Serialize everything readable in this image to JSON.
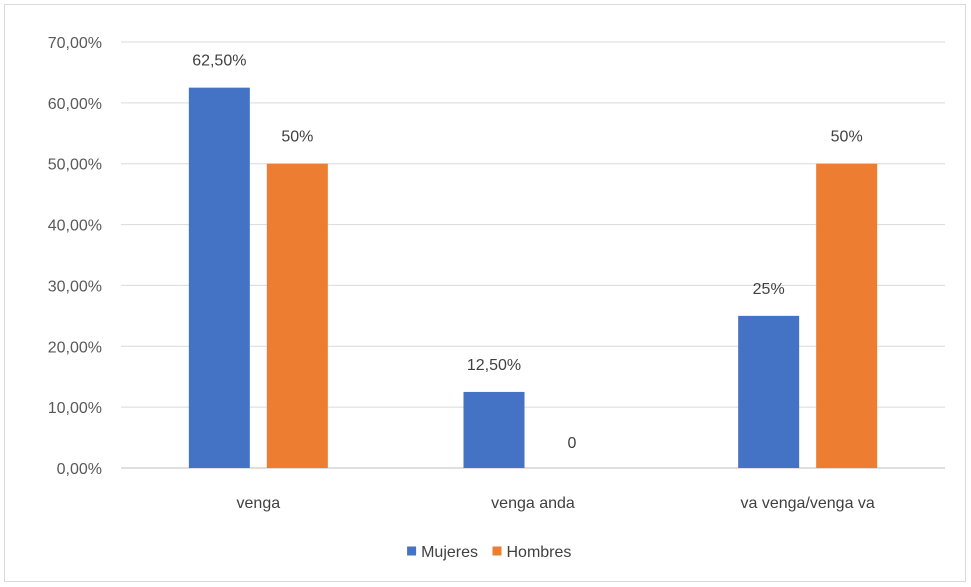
{
  "chart_data": {
    "type": "bar",
    "title": "",
    "xlabel": "",
    "ylabel": "",
    "categories": [
      "venga",
      "venga anda",
      "va venga/venga va"
    ],
    "ylim": [
      0,
      0.7
    ],
    "yticks": [
      0,
      0.1,
      0.2,
      0.3,
      0.4,
      0.5,
      0.6,
      0.7
    ],
    "ytick_labels": [
      "0,00%",
      "10,00%",
      "20,00%",
      "30,00%",
      "40,00%",
      "50,00%",
      "60,00%",
      "70,00%"
    ],
    "grid": true,
    "legend_position": "bottom",
    "series": [
      {
        "name": "Mujeres",
        "color": "#4472c4",
        "values": [
          0.625,
          0.125,
          0.25
        ],
        "data_labels": [
          "62,50%",
          "12,50%",
          "25%"
        ]
      },
      {
        "name": "Hombres",
        "color": "#ed7d31",
        "values": [
          0.5,
          0,
          0.5
        ],
        "data_labels": [
          "50%",
          "0",
          "50%"
        ]
      }
    ]
  }
}
